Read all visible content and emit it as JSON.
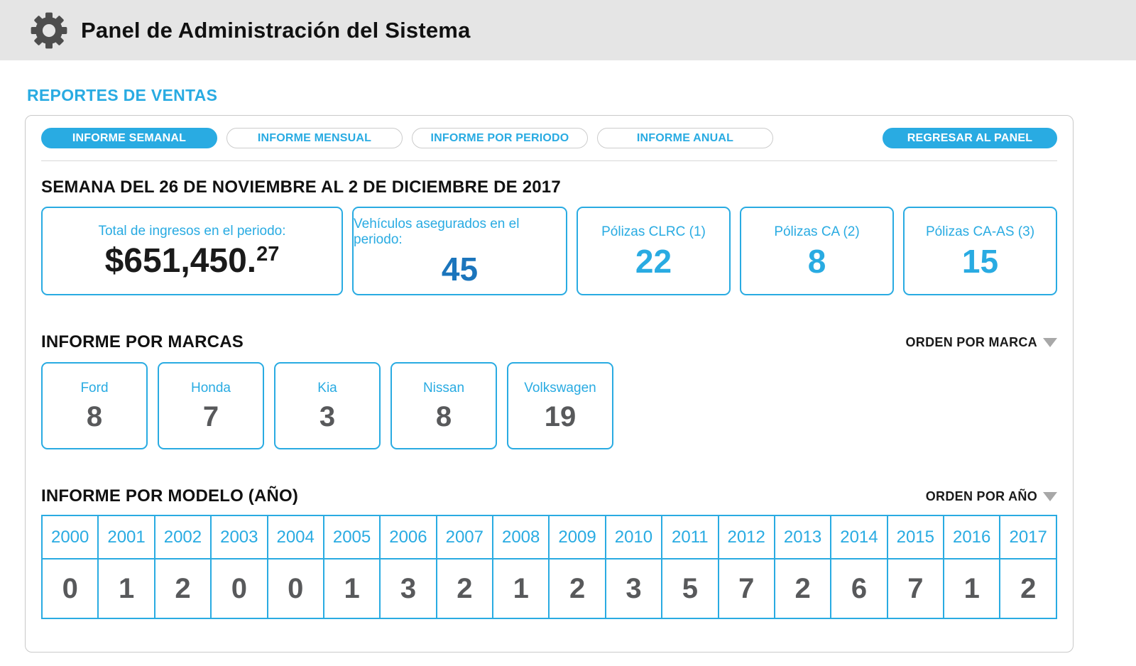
{
  "header": {
    "title": "Panel de Administración del Sistema"
  },
  "page": {
    "section_title": "REPORTES DE VENTAS"
  },
  "tabs": {
    "items": [
      {
        "label": "INFORME SEMANAL",
        "active": true
      },
      {
        "label": "INFORME MENSUAL",
        "active": false
      },
      {
        "label": "INFORME POR PERIODO",
        "active": false
      },
      {
        "label": "INFORME ANUAL",
        "active": false
      }
    ],
    "back_label": "REGRESAR AL PANEL"
  },
  "report": {
    "week_heading": "SEMANA DEL 26 DE NOVIEMBRE AL 2 DE DICIEMBRE DE 2017",
    "kpis": [
      {
        "label": "Total de ingresos en el periodo:",
        "value": "$651,450.",
        "cents": "27",
        "style": "black"
      },
      {
        "label": "Vehículos asegurados en el periodo:",
        "value": "45",
        "style": "darkblue"
      },
      {
        "label": "Pólizas CLRC (1)",
        "value": "22",
        "style": "blue"
      },
      {
        "label": "Pólizas CA (2)",
        "value": "8",
        "style": "blue"
      },
      {
        "label": "Pólizas CA-AS (3)",
        "value": "15",
        "style": "blue"
      }
    ]
  },
  "brands_section": {
    "title": "INFORME POR MARCAS",
    "sort_label": "ORDEN POR MARCA",
    "brands": [
      {
        "name": "Ford",
        "count": "8"
      },
      {
        "name": "Honda",
        "count": "7"
      },
      {
        "name": "Kia",
        "count": "3"
      },
      {
        "name": "Nissan",
        "count": "8"
      },
      {
        "name": "Volkswagen",
        "count": "19"
      }
    ]
  },
  "models_section": {
    "title": "INFORME POR MODELO (AÑO)",
    "sort_label": "ORDEN POR AÑO",
    "years": [
      "2000",
      "2001",
      "2002",
      "2003",
      "2004",
      "2005",
      "2006",
      "2007",
      "2008",
      "2009",
      "2010",
      "2011",
      "2012",
      "2013",
      "2014",
      "2015",
      "2016",
      "2017"
    ],
    "counts": [
      "0",
      "1",
      "2",
      "0",
      "0",
      "1",
      "3",
      "2",
      "1",
      "2",
      "3",
      "5",
      "7",
      "2",
      "6",
      "7",
      "1",
      "2"
    ]
  },
  "colors": {
    "accent_blue": "#29abe2",
    "dark_blue": "#1b75bc",
    "value_gray": "#58595b",
    "header_bg": "#e5e5e5",
    "gear_gray": "#4d4d4d"
  }
}
